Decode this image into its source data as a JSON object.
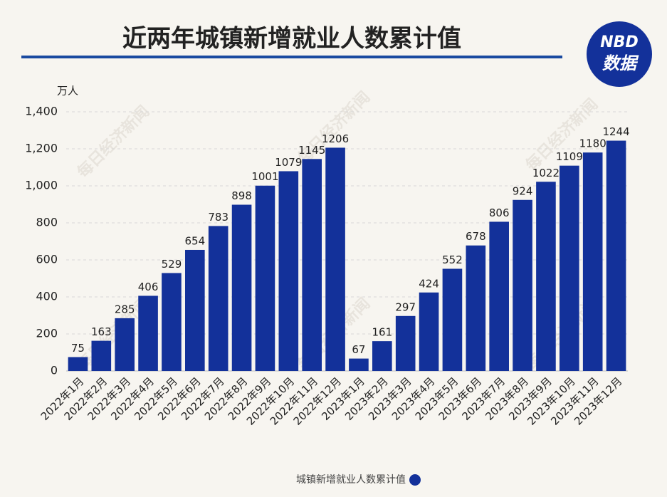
{
  "chart_data": {
    "type": "bar",
    "title": "近两年城镇新增就业人数累计值",
    "y_unit": "万人",
    "logo_text": [
      "NBD",
      "数据"
    ],
    "watermark": "每日经济新闻",
    "categories": [
      "2022年1月",
      "2022年2月",
      "2022年3月",
      "2022年4月",
      "2022年5月",
      "2022年6月",
      "2022年7月",
      "2022年8月",
      "2022年9月",
      "2022年10月",
      "2022年11月",
      "2022年12月",
      "2023年1月",
      "2023年2月",
      "2023年3月",
      "2023年4月",
      "2023年5月",
      "2023年6月",
      "2023年7月",
      "2023年8月",
      "2023年9月",
      "2023年10月",
      "2023年11月",
      "2023年12月"
    ],
    "series": [
      {
        "name": "城镇新增就业人数累计值",
        "color": "#13319a",
        "values": [
          75,
          163,
          285,
          406,
          529,
          654,
          783,
          898,
          1001,
          1079,
          1145,
          1206,
          67,
          161,
          297,
          424,
          552,
          678,
          806,
          924,
          1022,
          1109,
          1180,
          1244
        ]
      }
    ],
    "ylim": [
      0,
      1400
    ],
    "yticks": [
      0,
      200,
      400,
      600,
      800,
      {
        "value": 1000,
        "label": "1,000"
      },
      {
        "value": 1200,
        "label": "1,200"
      },
      {
        "value": 1400,
        "label": "1,400"
      }
    ],
    "grid": true
  }
}
